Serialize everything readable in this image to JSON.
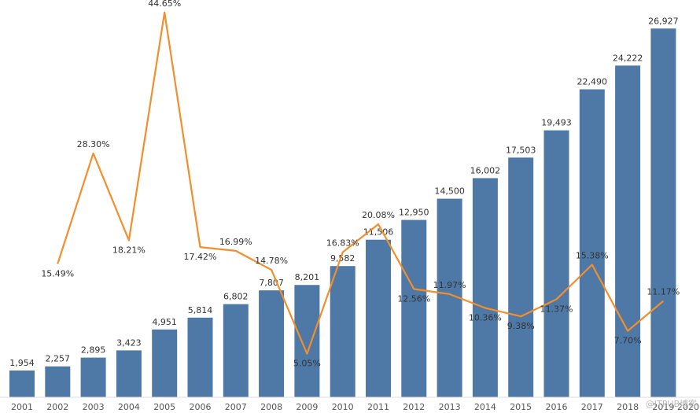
{
  "chart_data": {
    "type": "bar",
    "categories": [
      "2001",
      "2002",
      "2003",
      "2004",
      "2005",
      "2006",
      "2007",
      "2008",
      "2009",
      "2010",
      "2011",
      "2012",
      "2013",
      "2014",
      "2015",
      "2016",
      "2017",
      "2018",
      "2019",
      "2020"
    ],
    "series": [
      {
        "type": "bar",
        "values": [
          1954,
          2257,
          2895,
          3423,
          4951,
          5814,
          6802,
          7807,
          8201,
          9582,
          11506,
          12950,
          14500,
          16002,
          17503,
          19493,
          22490,
          24222,
          26927,
          null
        ],
        "labels": [
          "1,954",
          "2,257",
          "2,895",
          "3,423",
          "4,951",
          "5,814",
          "6,802",
          "7,807",
          "8,201",
          "9,582",
          "11,506",
          "12,950",
          "14,500",
          "16,002",
          "17,503",
          "19,493",
          "22,490",
          "24,222",
          "26,927",
          ""
        ],
        "color": "#4e79a7"
      },
      {
        "type": "line",
        "values": [
          null,
          15.49,
          28.3,
          18.21,
          44.65,
          17.42,
          16.99,
          14.78,
          5.05,
          16.83,
          20.08,
          12.56,
          11.97,
          10.36,
          9.38,
          11.37,
          15.38,
          7.7,
          11.17,
          null
        ],
        "labels": [
          "",
          "15.49%",
          "28.30%",
          "18.21%",
          "44.65%",
          "17.42%",
          "16.99%",
          "14.78%",
          "5.05%",
          "16.83%",
          "20.08%",
          "12.56%",
          "11.97%",
          "10.36%",
          "9.38%",
          "11.37%",
          "15.38%",
          "7.70%",
          "11.17%",
          ""
        ],
        "color": "#f28e2b"
      }
    ],
    "bar_ylim": [
      0,
      27000
    ],
    "line_ylim": [
      0,
      45
    ],
    "grid": false,
    "legend": "none"
  },
  "watermark": "@ITPUB博客"
}
